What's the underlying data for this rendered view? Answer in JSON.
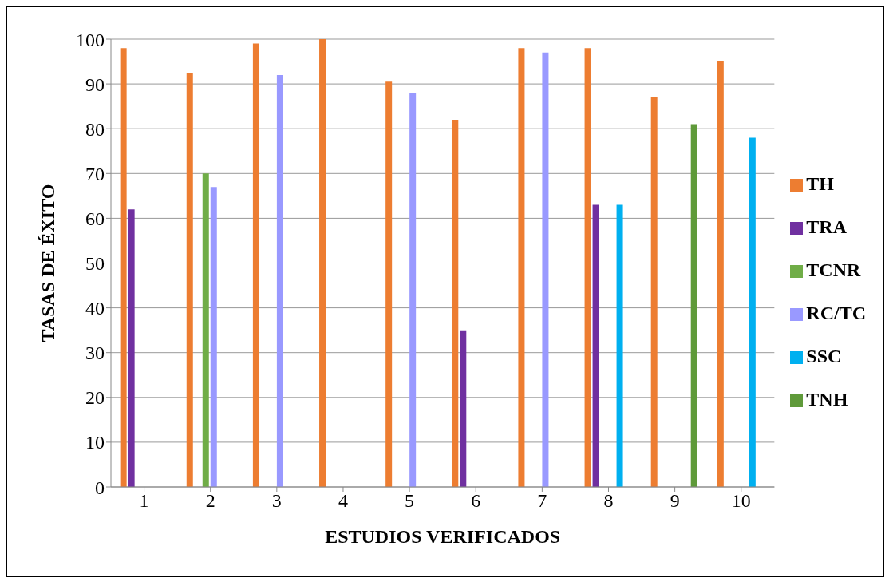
{
  "chart_data": {
    "type": "bar",
    "xlabel": "ESTUDIOS VERIFICADOS",
    "ylabel": "TASAS DE ÉXITO",
    "categories": [
      "1",
      "2",
      "3",
      "4",
      "5",
      "6",
      "7",
      "8",
      "9",
      "10"
    ],
    "series": [
      {
        "name": "TH",
        "color": "#ed7d31",
        "values": [
          98,
          92.5,
          99,
          100,
          90.5,
          82,
          98,
          98,
          87,
          95
        ]
      },
      {
        "name": "TRA",
        "color": "#7030a0",
        "values": [
          62,
          0,
          0,
          0,
          0,
          35,
          0,
          63,
          0,
          0
        ]
      },
      {
        "name": "TCNR",
        "color": "#70ad47",
        "values": [
          0,
          70,
          0,
          0,
          0,
          0,
          0,
          0,
          0,
          0
        ]
      },
      {
        "name": "RC/TC",
        "color": "#9999ff",
        "values": [
          0,
          67,
          92,
          0,
          88,
          0,
          97,
          0,
          0,
          0
        ]
      },
      {
        "name": "SSC",
        "color": "#00b0f0",
        "values": [
          0,
          0,
          0,
          0,
          0,
          0,
          0,
          63,
          0,
          78
        ]
      },
      {
        "name": "TNH",
        "color": "#5f9a3a",
        "values": [
          0,
          0,
          0,
          0,
          0,
          0,
          0,
          0,
          81,
          0
        ]
      }
    ],
    "ylim": [
      0,
      100
    ],
    "yticks": [
      0,
      10,
      20,
      30,
      40,
      50,
      60,
      70,
      80,
      90,
      100
    ],
    "grid": "y",
    "legend": "right"
  }
}
